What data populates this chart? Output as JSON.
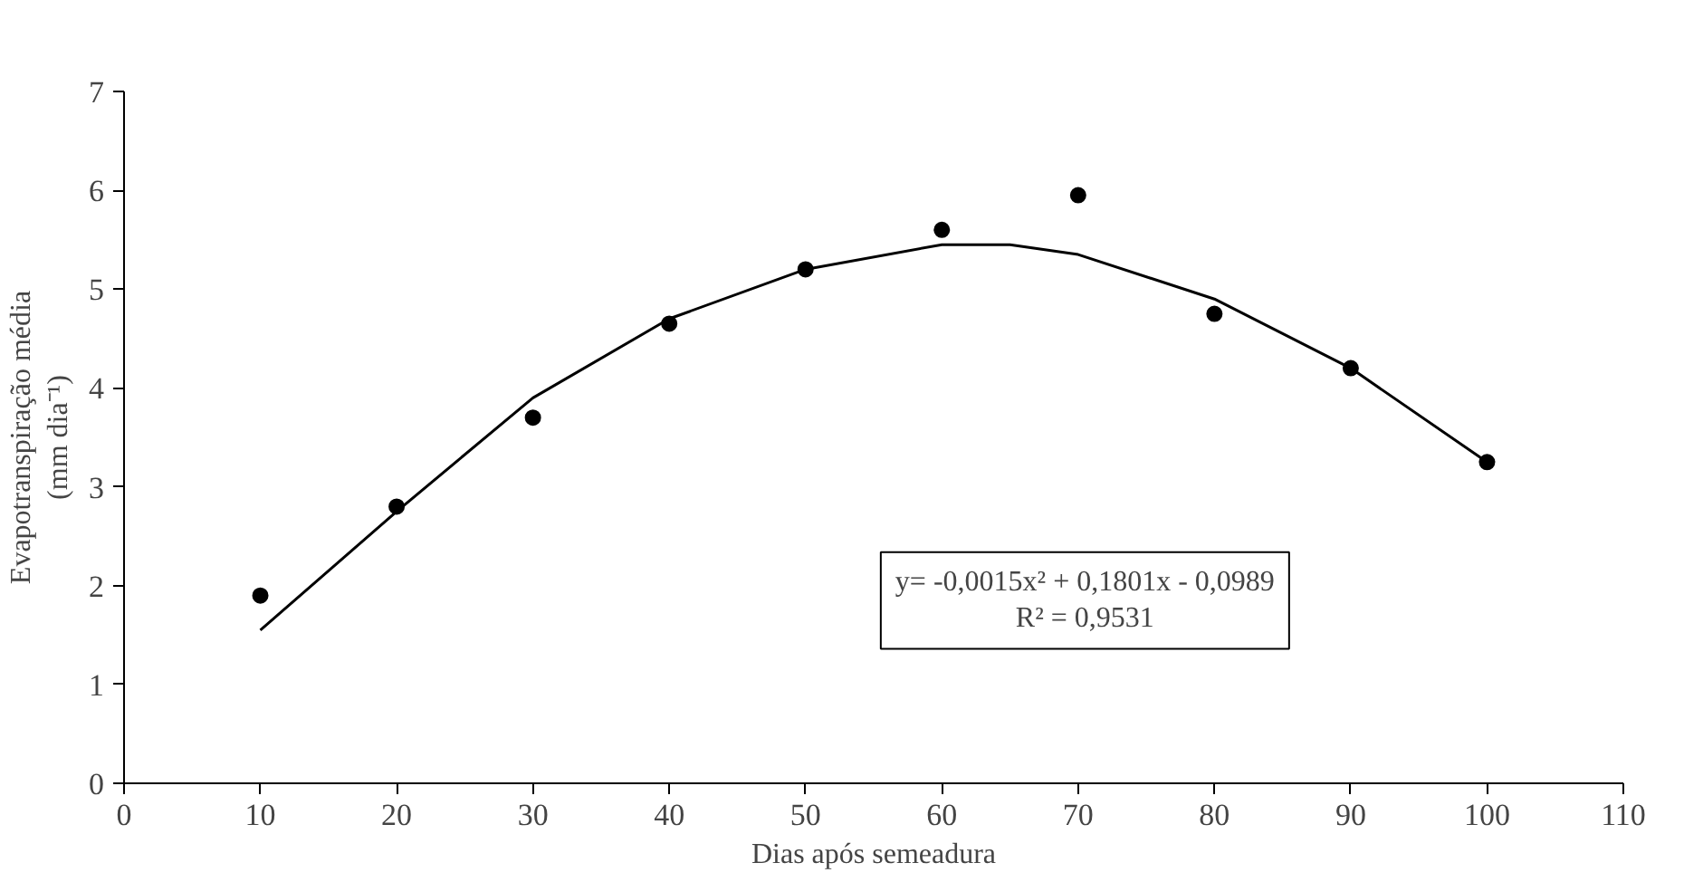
{
  "chart_data": {
    "type": "scatter",
    "xlabel": "Dias após semeadura",
    "ylabel": "Evapotranspiração média\n(mm dia⁻¹)",
    "x": [
      10,
      20,
      30,
      40,
      50,
      60,
      70,
      80,
      90,
      100
    ],
    "series": [
      {
        "color": "#000000",
        "values": [
          1.9,
          2.8,
          3.7,
          4.65,
          5.2,
          5.6,
          5.95,
          4.75,
          4.2,
          3.25
        ],
        "marker": "circle"
      },
      {
        "type": "line",
        "color": "#000000",
        "x": [
          10,
          20,
          30,
          40,
          50,
          60,
          65,
          70,
          80,
          90,
          100
        ],
        "values": [
          1.55,
          2.75,
          3.9,
          4.7,
          5.2,
          5.45,
          5.45,
          5.35,
          4.9,
          4.2,
          3.25
        ],
        "marker": "none"
      }
    ],
    "annotations": [
      "y= -0,0015x² + 0,1801x - 0,0989\nR² = 0,9531"
    ],
    "xlim": [
      0,
      110
    ],
    "xticks": [
      0,
      10,
      20,
      30,
      40,
      50,
      60,
      70,
      80,
      90,
      100,
      110
    ],
    "ylim": [
      0,
      7
    ],
    "yticks": [
      0,
      1,
      2,
      3,
      4,
      5,
      6,
      7
    ],
    "grid": false
  }
}
